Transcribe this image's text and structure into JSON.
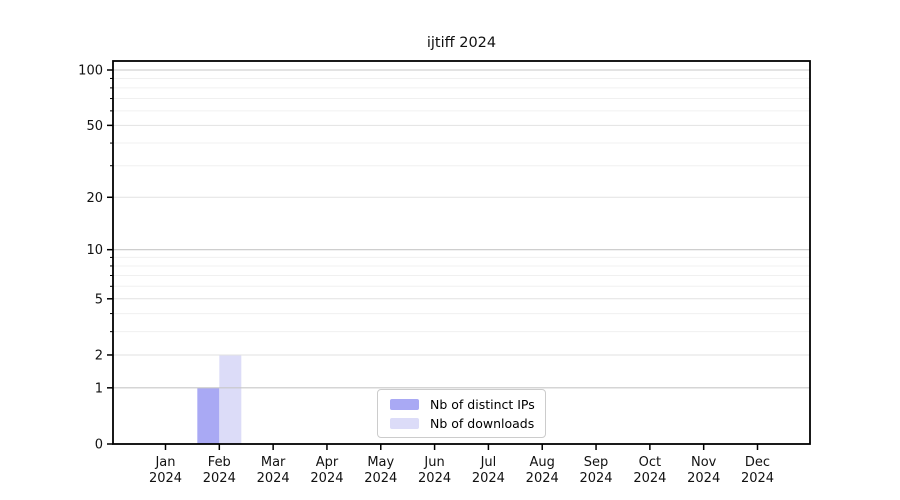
{
  "chart_data": {
    "type": "bar",
    "title": "ijtiff 2024",
    "x_tick_months": [
      "Jan",
      "Feb",
      "Mar",
      "Apr",
      "May",
      "Jun",
      "Jul",
      "Aug",
      "Sep",
      "Oct",
      "Nov",
      "Dec"
    ],
    "x_tick_year": "2024",
    "categories": [
      "Jan 2024",
      "Feb 2024",
      "Mar 2024",
      "Apr 2024",
      "May 2024",
      "Jun 2024",
      "Jul 2024",
      "Aug 2024",
      "Sep 2024",
      "Oct 2024",
      "Nov 2024",
      "Dec 2024"
    ],
    "series": [
      {
        "name": "Nb of distinct IPs",
        "color": "#a9a9f4",
        "values": [
          0,
          1,
          0,
          0,
          0,
          0,
          0,
          0,
          0,
          0,
          0,
          0
        ]
      },
      {
        "name": "Nb of downloads",
        "color": "#dcdcf8",
        "values": [
          0,
          2,
          0,
          0,
          0,
          0,
          0,
          0,
          0,
          0,
          0,
          0
        ]
      }
    ],
    "y_scale": "log1p",
    "ylim": [
      0,
      112
    ],
    "y_major_ticks": [
      0,
      1,
      2,
      5,
      10,
      20,
      50,
      100
    ],
    "y_decade_gridlines": [
      1,
      10,
      100
    ],
    "y_mid_gridlines": [
      2,
      5,
      20,
      50
    ],
    "y_minor_gridlines": [
      3,
      4,
      6,
      7,
      8,
      9,
      30,
      40,
      60,
      70,
      80,
      90
    ],
    "grid": true,
    "legend_position": "lower center",
    "colors": {
      "axis": "#000000",
      "decade_grid": "#c7c7c7",
      "mid_grid": "#e2e2e2",
      "minor_grid": "#f0f0f0",
      "legend_border": "#cccccc"
    }
  }
}
